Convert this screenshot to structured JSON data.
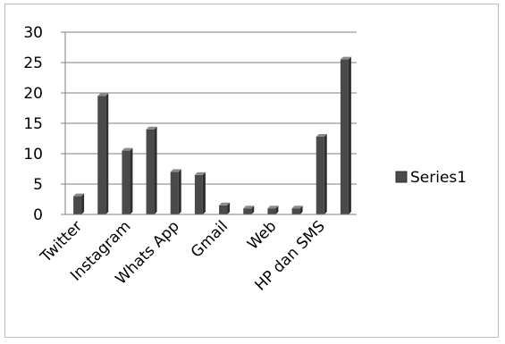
{
  "chart_data": {
    "type": "bar",
    "title": "",
    "xlabel": "",
    "ylabel": "",
    "ylim": [
      0,
      30
    ],
    "yticks": [
      0,
      5,
      10,
      15,
      20,
      25,
      30
    ],
    "grid": true,
    "legend_position": "right",
    "bar_style": "3d-shaded",
    "colors": {
      "bar_face": "#4a4a4a",
      "bar_side": "#2e2e2e",
      "bar_top": "#8a8a8a",
      "gridline": "#7f7f7f",
      "axis": "#7f7f7f"
    },
    "categories": [
      "Twitter",
      "",
      "Instagram",
      "",
      "Whats App",
      "",
      "Gmail",
      "",
      "Web",
      "",
      "HP dan SMS",
      ""
    ],
    "series": [
      {
        "name": "Series1",
        "values": [
          3,
          19.5,
          10.5,
          14,
          7,
          6.5,
          1.5,
          1,
          1,
          1,
          12.8,
          25.5
        ]
      }
    ]
  }
}
